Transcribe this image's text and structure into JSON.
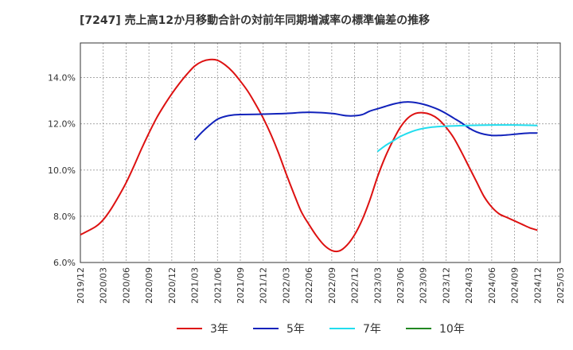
{
  "chart_data": {
    "type": "line",
    "title": "[7247]  売上高12か月移動合計の対前年同期増減率の標準偏差の推移",
    "xlabel": "",
    "ylabel": "",
    "x_ticks": [
      "2019/12",
      "2020/03",
      "2020/06",
      "2020/09",
      "2020/12",
      "2021/03",
      "2021/06",
      "2021/09",
      "2021/12",
      "2022/03",
      "2022/06",
      "2022/09",
      "2022/12",
      "2023/03",
      "2023/06",
      "2023/09",
      "2023/12",
      "2024/03",
      "2024/06",
      "2024/09",
      "2024/12",
      "2025/03"
    ],
    "y_ticks": [
      "6.0%",
      "8.0%",
      "10.0%",
      "12.0%",
      "14.0%"
    ],
    "ylim": [
      6.0,
      15.5
    ],
    "grid": true,
    "legend_position": "bottom",
    "series": [
      {
        "name": "3年",
        "color": "#dd1111",
        "values": [
          [
            "2019/12",
            7.2
          ],
          [
            "2020/02",
            7.55
          ],
          [
            "2020/03",
            7.85
          ],
          [
            "2020/04",
            8.3
          ],
          [
            "2020/05",
            8.85
          ],
          [
            "2020/06",
            9.45
          ],
          [
            "2020/07",
            10.15
          ],
          [
            "2020/08",
            10.9
          ],
          [
            "2020/09",
            11.6
          ],
          [
            "2020/10",
            12.25
          ],
          [
            "2020/11",
            12.8
          ],
          [
            "2020/12",
            13.3
          ],
          [
            "2021/01",
            13.75
          ],
          [
            "2021/02",
            14.15
          ],
          [
            "2021/03",
            14.5
          ],
          [
            "2021/04",
            14.7
          ],
          [
            "2021/05",
            14.78
          ],
          [
            "2021/06",
            14.75
          ],
          [
            "2021/07",
            14.55
          ],
          [
            "2021/08",
            14.25
          ],
          [
            "2021/09",
            13.85
          ],
          [
            "2021/10",
            13.4
          ],
          [
            "2021/11",
            12.85
          ],
          [
            "2021/12",
            12.25
          ],
          [
            "2022/01",
            11.55
          ],
          [
            "2022/02",
            10.75
          ],
          [
            "2022/03",
            9.85
          ],
          [
            "2022/04",
            9.0
          ],
          [
            "2022/05",
            8.2
          ],
          [
            "2022/06",
            7.65
          ],
          [
            "2022/07",
            7.15
          ],
          [
            "2022/08",
            6.75
          ],
          [
            "2022/09",
            6.52
          ],
          [
            "2022/10",
            6.5
          ],
          [
            "2022/11",
            6.75
          ],
          [
            "2022/12",
            7.2
          ],
          [
            "2023/01",
            7.85
          ],
          [
            "2023/02",
            8.7
          ],
          [
            "2023/03",
            9.7
          ],
          [
            "2023/04",
            10.55
          ],
          [
            "2023/05",
            11.25
          ],
          [
            "2023/06",
            11.85
          ],
          [
            "2023/07",
            12.25
          ],
          [
            "2023/08",
            12.45
          ],
          [
            "2023/09",
            12.48
          ],
          [
            "2023/10",
            12.4
          ],
          [
            "2023/11",
            12.2
          ],
          [
            "2023/12",
            11.85
          ],
          [
            "2024/01",
            11.4
          ],
          [
            "2024/02",
            10.8
          ],
          [
            "2024/03",
            10.15
          ],
          [
            "2024/04",
            9.5
          ],
          [
            "2024/05",
            8.85
          ],
          [
            "2024/06",
            8.4
          ],
          [
            "2024/07",
            8.1
          ],
          [
            "2024/08",
            7.95
          ],
          [
            "2024/09",
            7.8
          ],
          [
            "2024/10",
            7.65
          ],
          [
            "2024/11",
            7.5
          ],
          [
            "2024/12",
            7.4
          ]
        ]
      },
      {
        "name": "5年",
        "color": "#1122bb",
        "values": [
          [
            "2021/03",
            11.3
          ],
          [
            "2021/04",
            11.65
          ],
          [
            "2021/05",
            11.95
          ],
          [
            "2021/06",
            12.2
          ],
          [
            "2021/07",
            12.32
          ],
          [
            "2021/08",
            12.38
          ],
          [
            "2021/09",
            12.4
          ],
          [
            "2021/12",
            12.42
          ],
          [
            "2022/03",
            12.45
          ],
          [
            "2022/06",
            12.5
          ],
          [
            "2022/09",
            12.45
          ],
          [
            "2022/10",
            12.4
          ],
          [
            "2022/11",
            12.35
          ],
          [
            "2022/12",
            12.35
          ],
          [
            "2023/01",
            12.4
          ],
          [
            "2023/02",
            12.55
          ],
          [
            "2023/03",
            12.65
          ],
          [
            "2023/04",
            12.75
          ],
          [
            "2023/05",
            12.85
          ],
          [
            "2023/06",
            12.92
          ],
          [
            "2023/07",
            12.95
          ],
          [
            "2023/08",
            12.92
          ],
          [
            "2023/09",
            12.85
          ],
          [
            "2023/10",
            12.75
          ],
          [
            "2023/11",
            12.62
          ],
          [
            "2023/12",
            12.45
          ],
          [
            "2024/01",
            12.25
          ],
          [
            "2024/02",
            12.05
          ],
          [
            "2024/03",
            11.82
          ],
          [
            "2024/04",
            11.65
          ],
          [
            "2024/05",
            11.55
          ],
          [
            "2024/06",
            11.5
          ],
          [
            "2024/07",
            11.5
          ],
          [
            "2024/08",
            11.52
          ],
          [
            "2024/09",
            11.55
          ],
          [
            "2024/10",
            11.58
          ],
          [
            "2024/11",
            11.6
          ],
          [
            "2024/12",
            11.6
          ]
        ]
      },
      {
        "name": "7年",
        "color": "#22ddee",
        "values": [
          [
            "2023/03",
            10.8
          ],
          [
            "2023/04",
            11.05
          ],
          [
            "2023/05",
            11.25
          ],
          [
            "2023/06",
            11.45
          ],
          [
            "2023/07",
            11.6
          ],
          [
            "2023/08",
            11.72
          ],
          [
            "2023/09",
            11.8
          ],
          [
            "2023/10",
            11.85
          ],
          [
            "2023/11",
            11.88
          ],
          [
            "2023/12",
            11.9
          ],
          [
            "2024/03",
            11.93
          ],
          [
            "2024/06",
            11.95
          ],
          [
            "2024/09",
            11.95
          ],
          [
            "2024/12",
            11.93
          ]
        ]
      },
      {
        "name": "10年",
        "color": "#228822",
        "values": []
      }
    ]
  }
}
